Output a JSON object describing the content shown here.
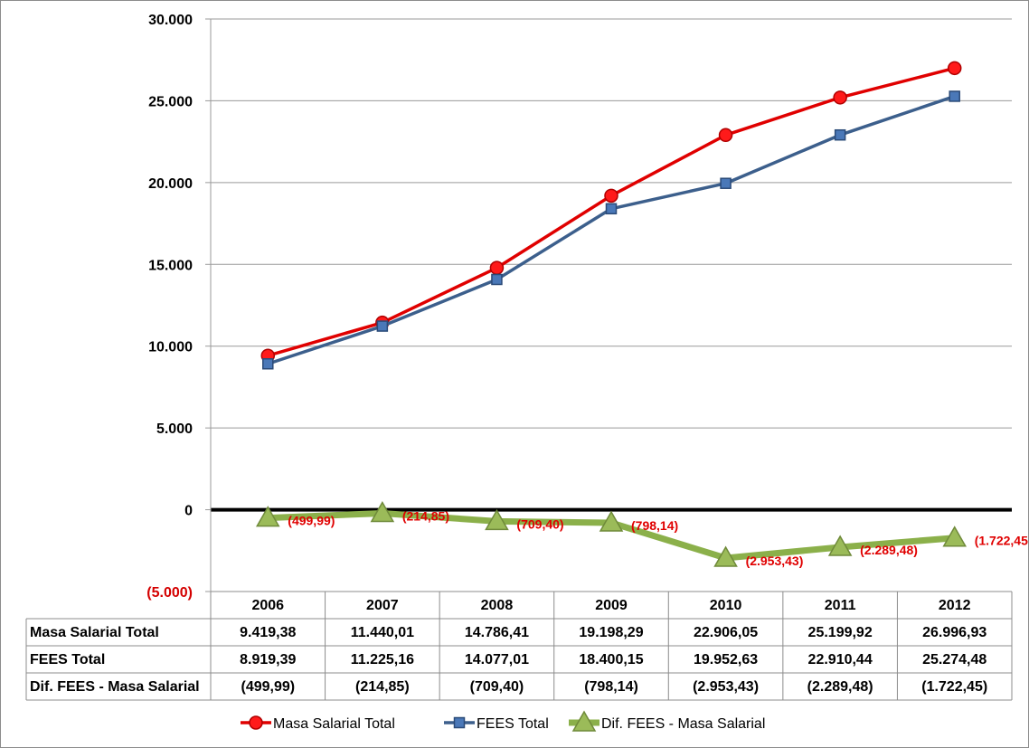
{
  "chart_data": {
    "type": "line",
    "categories": [
      "2006",
      "2007",
      "2008",
      "2009",
      "2010",
      "2011",
      "2012"
    ],
    "y_ticks": [
      "30.000",
      "25.000",
      "20.000",
      "15.000",
      "10.000",
      "5.000",
      "0",
      "(5.000)"
    ],
    "ylim": [
      -5000,
      30000
    ],
    "grid": true,
    "legend_position": "bottom",
    "series": [
      {
        "name": "Masa Salarial Total",
        "color": "#e00000",
        "marker": "circle",
        "values": [
          9419.38,
          11440.01,
          14786.41,
          19198.29,
          22906.05,
          25199.92,
          26996.93
        ],
        "labels": [
          "9.419,38",
          "11.440,01",
          "14.786,41",
          "19.198,29",
          "22.906,05",
          "25.199,92",
          "26.996,93"
        ]
      },
      {
        "name": "FEES Total",
        "color": "#3c5f8c",
        "marker": "square",
        "values": [
          8919.39,
          11225.16,
          14077.01,
          18400.15,
          19952.63,
          22910.44,
          25274.48
        ],
        "labels": [
          "8.919,39",
          "11.225,16",
          "14.077,01",
          "18.400,15",
          "19.952,63",
          "22.910,44",
          "25.274,48"
        ]
      },
      {
        "name": "Dif. FEES - Masa Salarial",
        "color": "#8bb04a",
        "marker": "triangle",
        "values": [
          -499.99,
          -214.85,
          -709.4,
          -798.14,
          -2953.43,
          -2289.48,
          -1722.45
        ],
        "labels": [
          "(499,99)",
          "(214,85)",
          "(709,40)",
          "(798,14)",
          "(2.953,43)",
          "(2.289,48)",
          "(1.722,45)"
        ],
        "point_labels": [
          "(499,99)",
          "(214,85)",
          "(709,40)",
          "(798,14)",
          "(2.953,43)",
          "(2.289,48)",
          "(1.722,45)"
        ]
      }
    ]
  }
}
